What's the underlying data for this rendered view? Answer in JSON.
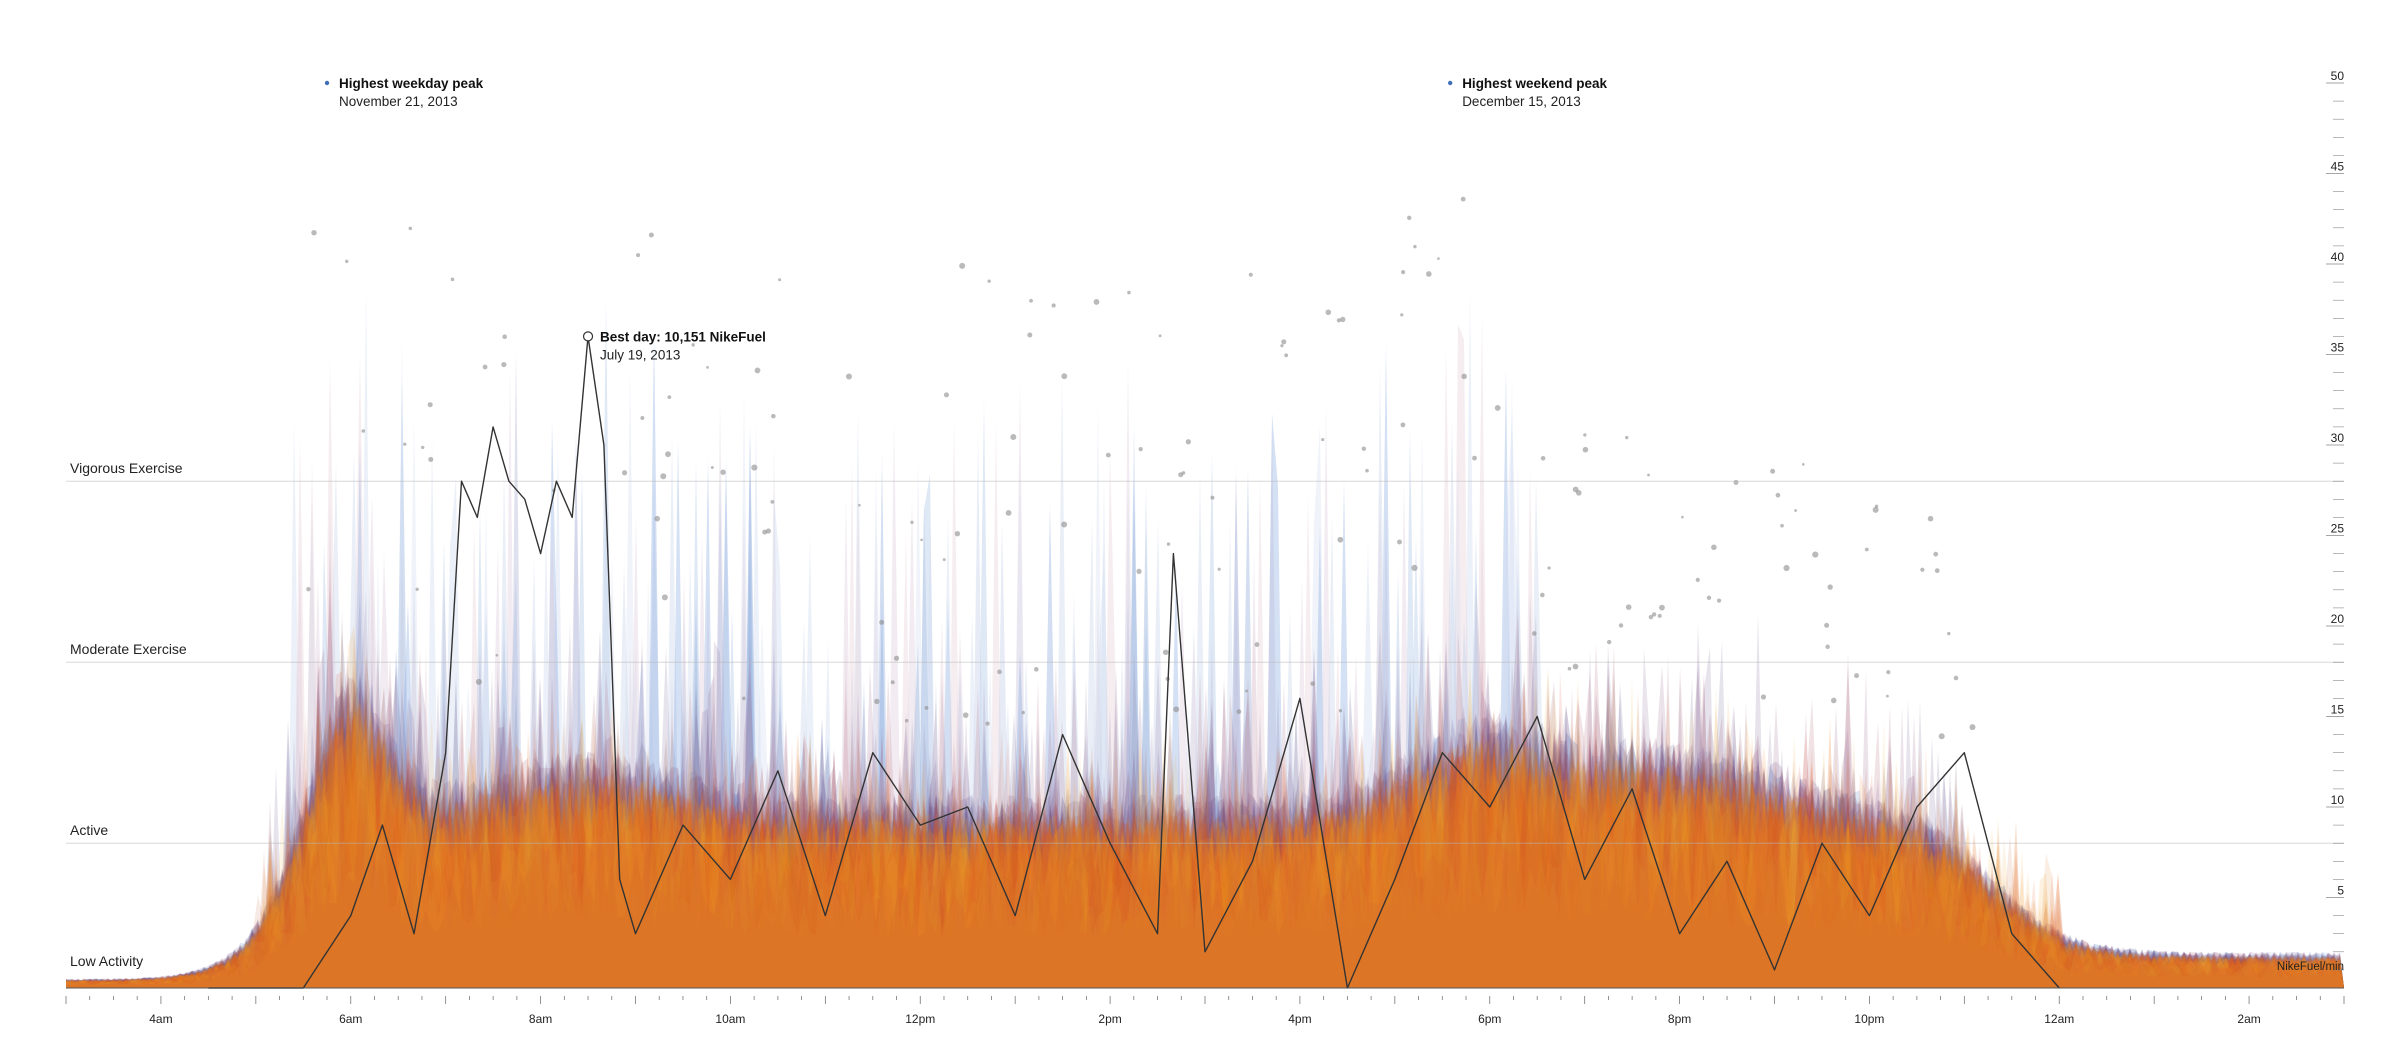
{
  "chart_data": {
    "type": "area",
    "title": "",
    "xlabel": "",
    "ylabel": "NikeFuel/min",
    "ylim": [
      0,
      50
    ],
    "y_ticks": [
      5,
      10,
      15,
      20,
      25,
      30,
      35,
      40,
      45,
      50
    ],
    "x_tick_labels": [
      "4am",
      "6am",
      "8am",
      "10am",
      "12pm",
      "2pm",
      "4pm",
      "6pm",
      "8pm",
      "10pm",
      "12am",
      "2am"
    ],
    "x_range": [
      "3am",
      "3am"
    ],
    "grid": false,
    "activity_bands": [
      {
        "label": "Low Activity",
        "threshold": 0
      },
      {
        "label": "Active",
        "threshold": 8
      },
      {
        "label": "Moderate Exercise",
        "threshold": 18
      },
      {
        "label": "Vigorous Exercise",
        "threshold": 28
      }
    ],
    "annotations": [
      {
        "title": "Highest weekday peak",
        "date": "November 21, 2013",
        "time": "5:45am",
        "value": 50
      },
      {
        "title": "Highest weekend peak",
        "date": "December 15, 2013",
        "time": "5:35pm",
        "value": 50
      },
      {
        "title": "Best day: 10,151 NikeFuel",
        "date": "July 19, 2013",
        "time": "8:30am",
        "value": 36
      }
    ],
    "highlight_series": {
      "name": "Best day: 10,151 NikeFuel",
      "time": [
        "4:30am",
        "5:30am",
        "6:00am",
        "6:20am",
        "6:40am",
        "7:00am",
        "7:10am",
        "7:20am",
        "7:30am",
        "7:40am",
        "7:50am",
        "8:00am",
        "8:10am",
        "8:20am",
        "8:30am",
        "8:40am",
        "8:50am",
        "9:00am",
        "9:30am",
        "10:00am",
        "10:30am",
        "11:00am",
        "11:30am",
        "12:00pm",
        "12:30pm",
        "1:00pm",
        "1:30pm",
        "2:00pm",
        "2:30pm",
        "2:40pm",
        "3:00pm",
        "3:30pm",
        "4:00pm",
        "4:30pm",
        "5:00pm",
        "5:30pm",
        "6:00pm",
        "6:30pm",
        "7:00pm",
        "7:30pm",
        "8:00pm",
        "8:30pm",
        "9:00pm",
        "9:30pm",
        "10:00pm",
        "10:30pm",
        "11:00pm",
        "11:30pm",
        "12:00am"
      ],
      "values": [
        0,
        0,
        4,
        9,
        3,
        13,
        28,
        26,
        31,
        28,
        27,
        24,
        28,
        26,
        36,
        30,
        6,
        3,
        9,
        6,
        12,
        4,
        13,
        9,
        10,
        4,
        14,
        8,
        3,
        24,
        2,
        7,
        16,
        0,
        6,
        13,
        10,
        15,
        6,
        11,
        3,
        7,
        1,
        8,
        4,
        10,
        13,
        3,
        0
      ]
    }
  }
}
